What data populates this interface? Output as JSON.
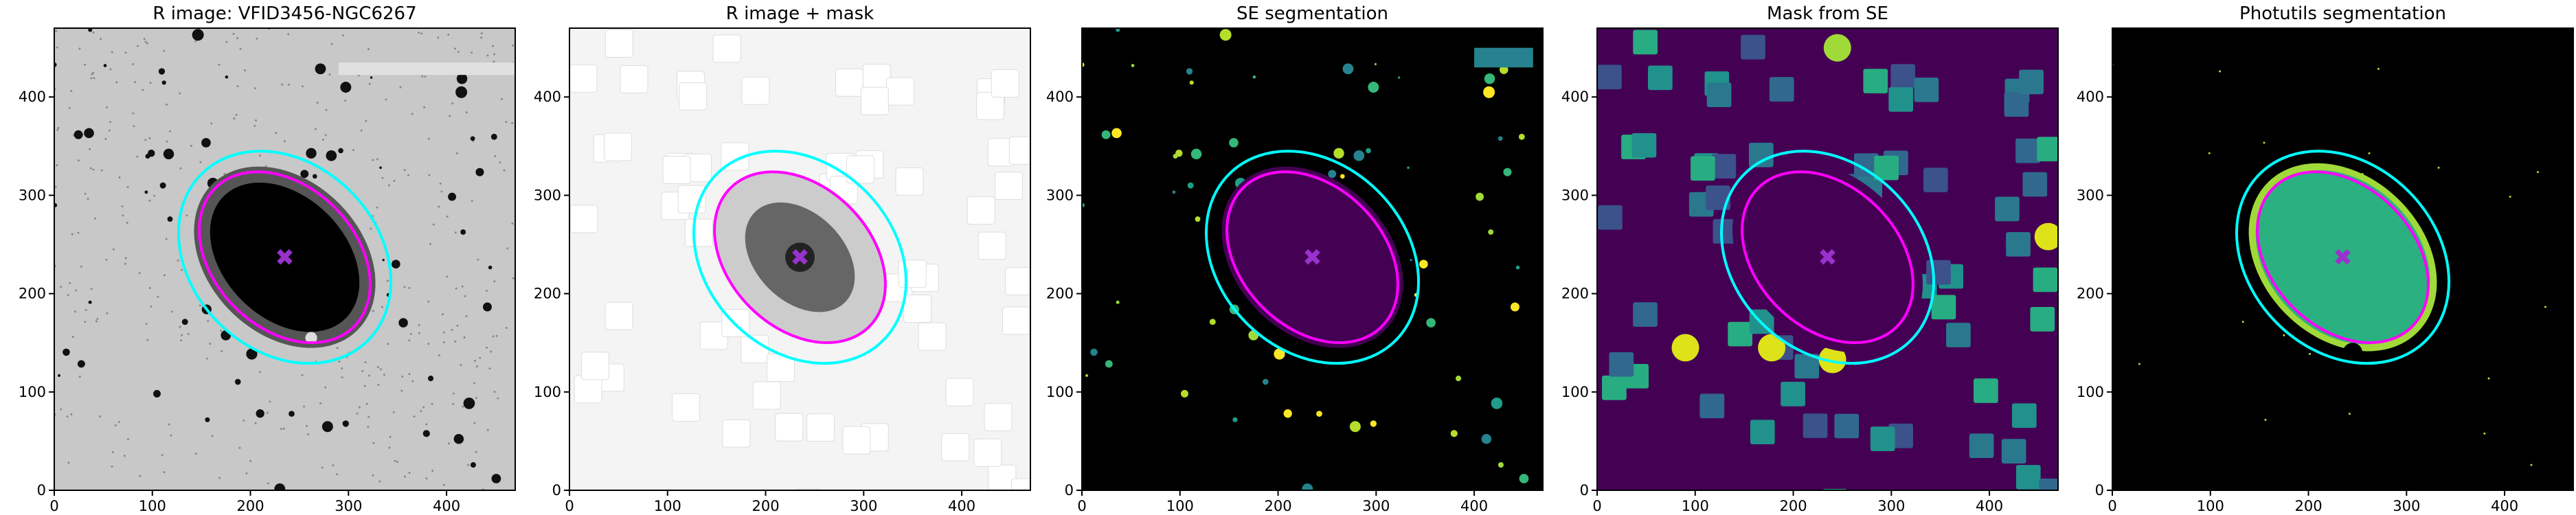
{
  "chart_data": [
    {
      "type": "image",
      "title": "R image: VFID3456-NGC6267",
      "xlim": [
        0,
        470
      ],
      "ylim": [
        0,
        470
      ],
      "xticks": [
        0,
        100,
        200,
        300,
        400
      ],
      "yticks": [
        0,
        100,
        200,
        300,
        400
      ]
    },
    {
      "type": "image",
      "title": "R image + mask",
      "xlim": [
        0,
        470
      ],
      "ylim": [
        0,
        470
      ],
      "xticks": [
        0,
        100,
        200,
        300,
        400
      ],
      "yticks": [
        0,
        100,
        200,
        300,
        400
      ]
    },
    {
      "type": "image",
      "title": "SE segmentation",
      "xlim": [
        0,
        470
      ],
      "ylim": [
        0,
        470
      ],
      "xticks": [
        0,
        100,
        200,
        300,
        400
      ],
      "yticks": [
        0,
        100,
        200,
        300,
        400
      ]
    },
    {
      "type": "image",
      "title": "Mask from SE",
      "xlim": [
        0,
        470
      ],
      "ylim": [
        0,
        470
      ],
      "xticks": [
        0,
        100,
        200,
        300,
        400
      ],
      "yticks": [
        0,
        100,
        200,
        300,
        400
      ]
    },
    {
      "type": "image",
      "title": "Photutils segmentation",
      "xlim": [
        0,
        470
      ],
      "ylim": [
        0,
        470
      ],
      "xticks": [
        0,
        100,
        200,
        300,
        400
      ],
      "yticks": [
        0,
        100,
        200,
        300,
        400
      ]
    }
  ]
}
